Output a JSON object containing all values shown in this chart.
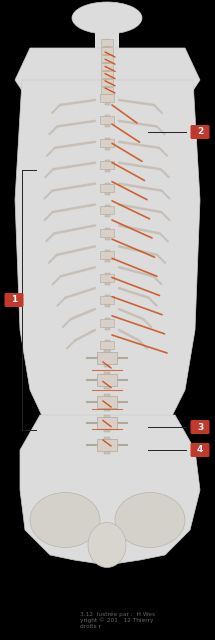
{
  "figsize": [
    2.15,
    6.4
  ],
  "dpi": 100,
  "bg_color": "#ffffff",
  "body_bg": "#e8e8e8",
  "label_bg_color": "#c0392b",
  "label_text_color": "#ffffff",
  "label_fontsize": 6.5,
  "line_color": "#222222",
  "line_width": 0.7,
  "orange": "#cc5522",
  "bone_color": "#d8d0c8",
  "bone_edge": "#b0a898",
  "rib_color": "#c8c0b8",
  "copyright_lines": [
    "3.12  lustrée par :  H Wes",
    "yright © 201   12 Thierry",
    "droits r"
  ],
  "copyright_fontsize": 4.2
}
